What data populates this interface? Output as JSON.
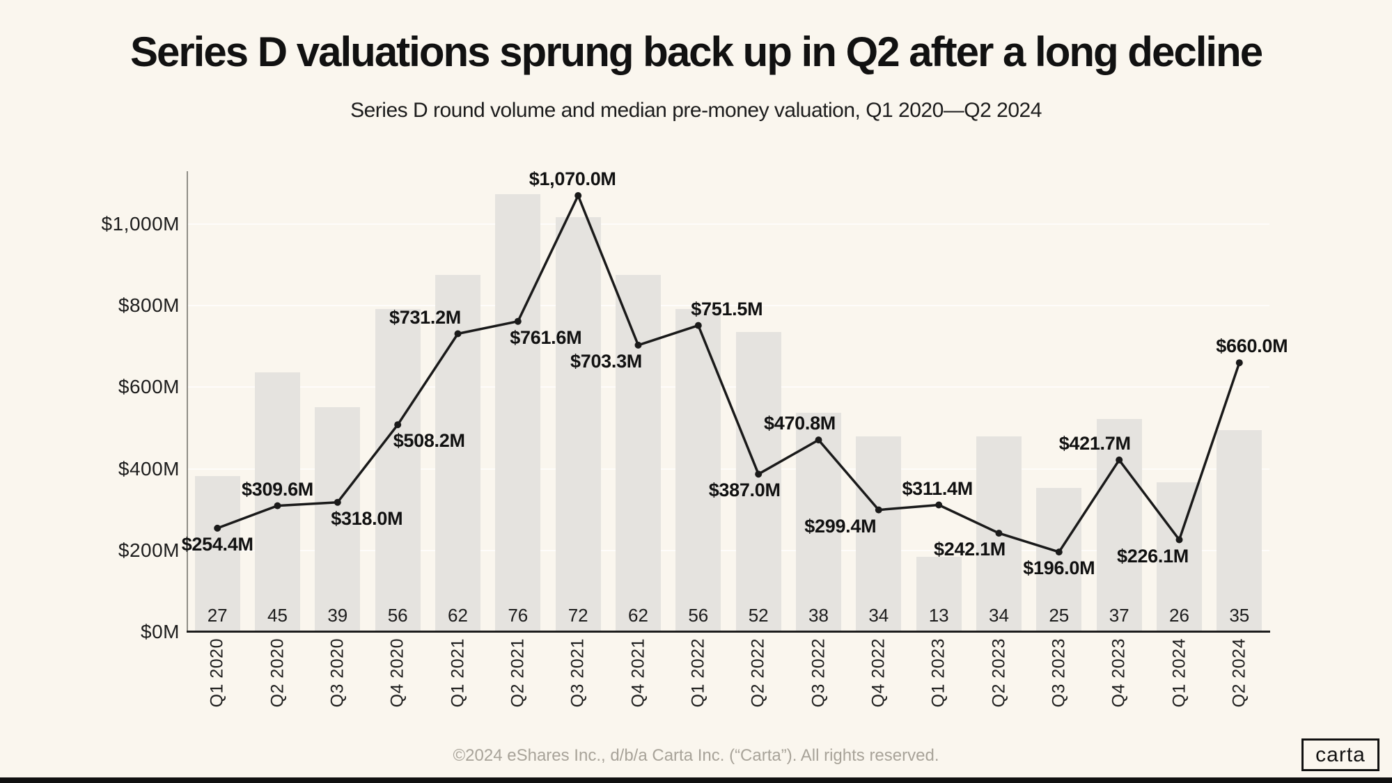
{
  "header": {
    "title": "Series D valuations sprung back up in Q2 after a long decline",
    "subtitle": "Series D round volume and median pre-money valuation, Q1 2020—Q2 2024"
  },
  "footer": {
    "copyright": "©2024 eShares Inc., d/b/a Carta Inc. (“Carta”). All rights reserved.",
    "logo_text": "carta"
  },
  "colors": {
    "background": "#FAF6EE",
    "bar": "#E5E3DF",
    "line": "#1A1A1A",
    "gridline": "#FFFFFF",
    "x_axis": "#1C1C1C",
    "y_axis": "#8F8D86",
    "footer_text": "#A8A399"
  },
  "chart_data": {
    "type": "combo_bar_line",
    "title": "Series D valuations sprung back up in Q2 after a long decline",
    "subtitle": "Series D round volume and median pre-money valuation, Q1 2020—Q2 2024",
    "categories": [
      "Q1 2020",
      "Q2 2020",
      "Q3 2020",
      "Q4 2020",
      "Q1 2021",
      "Q2 2021",
      "Q3 2021",
      "Q4 2021",
      "Q1 2022",
      "Q2 2022",
      "Q3 2022",
      "Q4 2022",
      "Q1 2023",
      "Q2 2023",
      "Q3 2023",
      "Q4 2023",
      "Q1 2024",
      "Q2 2024"
    ],
    "series": [
      {
        "name": "Round volume",
        "type": "bar",
        "values": [
          27,
          45,
          39,
          56,
          62,
          76,
          72,
          62,
          56,
          52,
          38,
          34,
          13,
          34,
          25,
          37,
          26,
          35
        ]
      },
      {
        "name": "Median pre-money valuation ($M)",
        "type": "line",
        "values": [
          254.4,
          309.6,
          318.0,
          508.2,
          731.2,
          761.6,
          1070.0,
          703.3,
          751.5,
          387.0,
          470.8,
          299.4,
          311.4,
          242.1,
          196.0,
          421.7,
          226.1,
          660.0
        ],
        "labels": [
          "$254.4M",
          "$309.6M",
          "$318.0M",
          "$508.2M",
          "$731.2M",
          "$761.6M",
          "$1,070.0M",
          "$703.3M",
          "$751.5M",
          "$387.0M",
          "$470.8M",
          "$299.4M",
          "$311.4M",
          "$242.1M",
          "$196.0M",
          "$421.7M",
          "$226.1M",
          "$660.0M"
        ],
        "label_side": [
          "below",
          "above",
          "below",
          "below",
          "above",
          "below",
          "above",
          "below",
          "above",
          "below",
          "above",
          "below",
          "above",
          "below",
          "below",
          "above",
          "below",
          "above"
        ],
        "label_dx": [
          0,
          0,
          42,
          45,
          -47,
          40,
          -8,
          -46,
          41,
          -20,
          -27,
          -55,
          -2,
          -42,
          0,
          -35,
          -38,
          18
        ]
      }
    ],
    "y_axis": {
      "tick_labels": [
        "$0M",
        "$200M",
        "$400M",
        "$600M",
        "$800M",
        "$1,000M"
      ],
      "tick_values": [
        0,
        200,
        400,
        600,
        800,
        1000
      ],
      "ylim": [
        0,
        1120
      ],
      "grid": true,
      "legend": "none"
    }
  }
}
